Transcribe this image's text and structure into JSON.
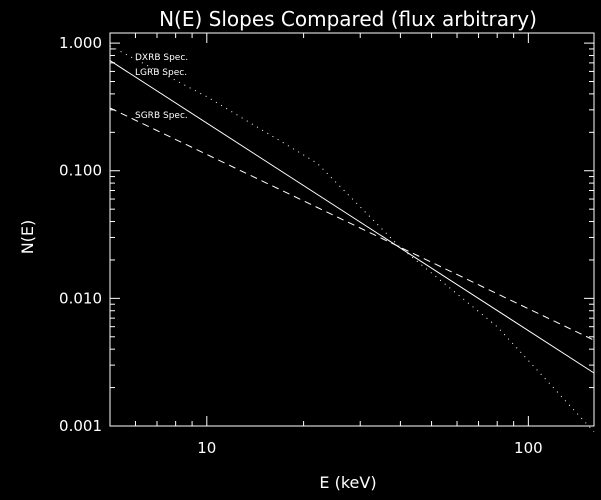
{
  "chart_data": {
    "type": "line",
    "title": "N(E) Slopes Compared (flux arbitrary)",
    "xlabel": "E (keV)",
    "ylabel": "N(E)",
    "xscale": "log",
    "yscale": "log",
    "xlim": [
      5,
      160
    ],
    "ylim": [
      0.001,
      1.2
    ],
    "xticks_major": [
      10,
      100
    ],
    "xtick_labels": [
      "10",
      "100"
    ],
    "yticks_major": [
      0.001,
      0.01,
      0.1,
      1.0
    ],
    "ytick_labels": [
      "0.001",
      "0.010",
      "0.100",
      "1.000"
    ],
    "grid": false,
    "background": "#000000",
    "foreground": "#ffffff",
    "series": [
      {
        "name": "DXRB Spec.",
        "style": "dotted",
        "x": [
          5,
          10,
          22,
          40,
          80,
          160
        ],
        "y": [
          0.95,
          0.38,
          0.115,
          0.025,
          0.006,
          0.0009
        ]
      },
      {
        "name": "LGRB Spec.",
        "style": "solid",
        "x": [
          5,
          160
        ],
        "y": [
          0.73,
          0.0026
        ]
      },
      {
        "name": "SGRB Spec.",
        "style": "dashed",
        "x": [
          5,
          160
        ],
        "y": [
          0.31,
          0.0047
        ]
      }
    ]
  }
}
